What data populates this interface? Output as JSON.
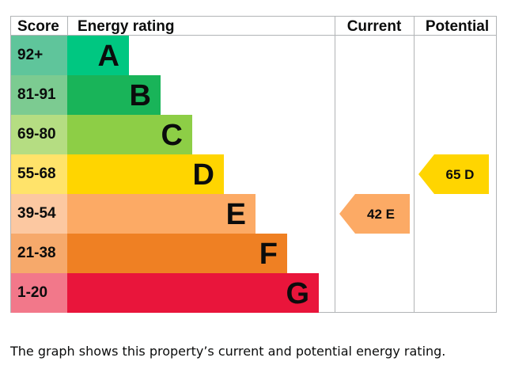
{
  "chart_data": {
    "type": "bar",
    "title": "",
    "headers": {
      "score": "Score",
      "rating": "Energy rating",
      "current": "Current",
      "potential": "Potential"
    },
    "bands": [
      {
        "band": "A",
        "range": "92+",
        "score_color": "#5fc59b",
        "bar_color": "#00c781",
        "relative_length": 1
      },
      {
        "band": "B",
        "range": "81-91",
        "score_color": "#7ccb91",
        "bar_color": "#19b459",
        "relative_length": 2
      },
      {
        "band": "C",
        "range": "69-80",
        "score_color": "#b5dd82",
        "bar_color": "#8dce46",
        "relative_length": 3
      },
      {
        "band": "D",
        "range": "55-68",
        "score_color": "#ffe36a",
        "bar_color": "#ffd500",
        "relative_length": 4
      },
      {
        "band": "E",
        "range": "39-54",
        "score_color": "#fcc8a1",
        "bar_color": "#fcaa65",
        "relative_length": 5
      },
      {
        "band": "F",
        "range": "21-38",
        "score_color": "#f6a96b",
        "bar_color": "#ef8023",
        "relative_length": 6
      },
      {
        "band": "G",
        "range": "1-20",
        "score_color": "#f2788a",
        "bar_color": "#e9153b",
        "relative_length": 7
      }
    ],
    "current": {
      "score": 42,
      "band": "E",
      "label": "42 E",
      "color": "#fcaa65"
    },
    "potential": {
      "score": 65,
      "band": "D",
      "label": "65 D",
      "color": "#ffd500"
    }
  },
  "caption": "The graph shows this property’s current and potential energy rating."
}
